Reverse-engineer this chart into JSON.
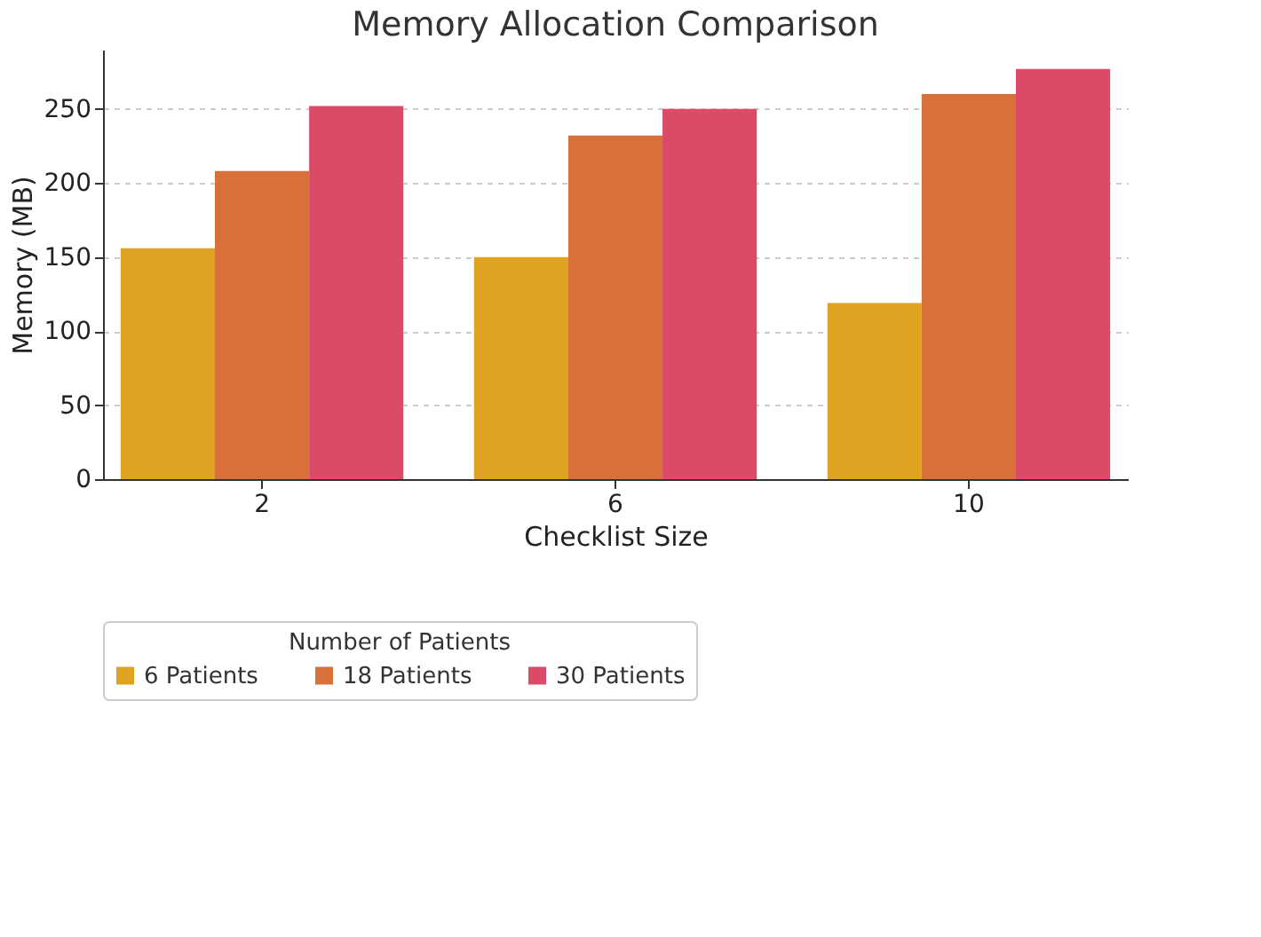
{
  "chart_data": {
    "type": "bar",
    "title": "Memory Allocation Comparison",
    "xlabel": "Checklist Size",
    "ylabel": "Memory (MB)",
    "legend_title": "Number of Patients",
    "categories": [
      "2",
      "6",
      "10"
    ],
    "series": [
      {
        "name": "6 Patients",
        "color": "#dfa321",
        "values": [
          156,
          150,
          119
        ]
      },
      {
        "name": "18 Patients",
        "color": "#d9703a",
        "values": [
          208,
          232,
          260
        ]
      },
      {
        "name": "30 Patients",
        "color": "#dc4a67",
        "values": [
          252,
          250,
          277
        ]
      }
    ],
    "ylim": [
      0,
      290
    ],
    "yticks": [
      0,
      50,
      100,
      150,
      200,
      250
    ],
    "grid": "y",
    "legend": "bottom"
  }
}
